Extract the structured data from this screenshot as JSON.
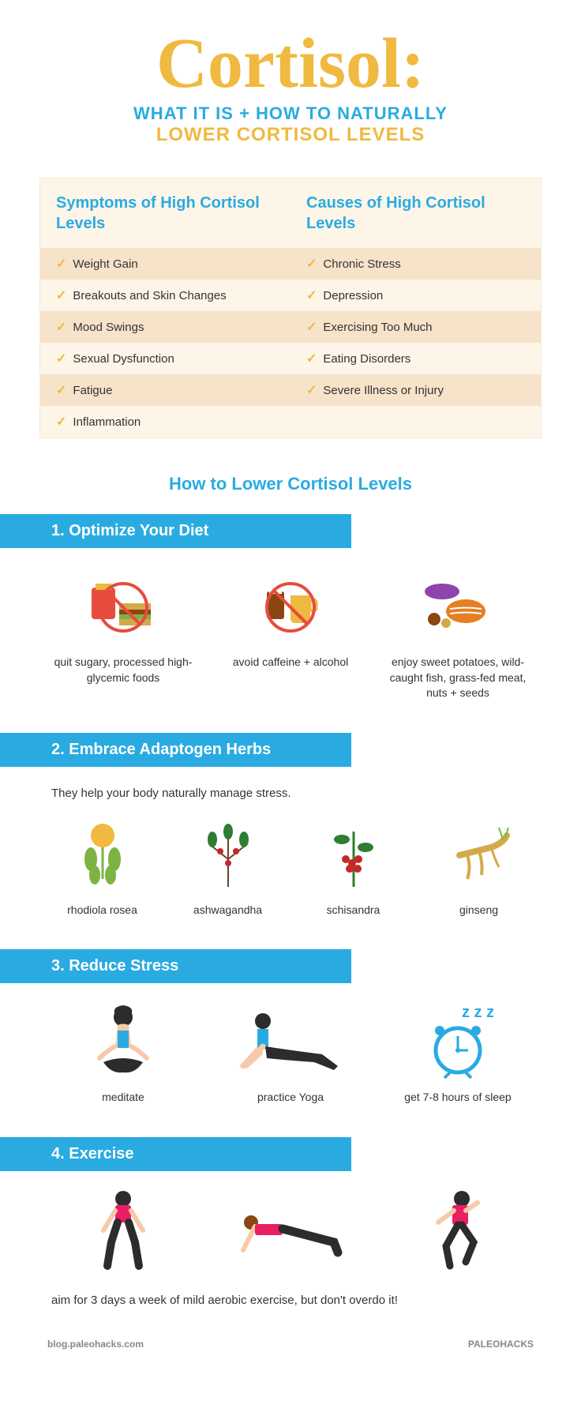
{
  "title": "Cortisol:",
  "subtitle_line1": "WHAT IT IS + HOW TO NATURALLY",
  "subtitle_line2": "LOWER CORTISOL LEVELS",
  "colors": {
    "accent_gold": "#f0b940",
    "accent_blue": "#29abe2",
    "table_bg_light": "#fdf5e8",
    "table_bg_dark": "#f6e3c9",
    "text": "#333333",
    "footer": "#888888"
  },
  "table": {
    "header_left": "Symptoms of High Cortisol Levels",
    "header_right": "Causes of High Cortisol Levels",
    "rows": [
      {
        "left": "Weight Gain",
        "right": "Chronic Stress"
      },
      {
        "left": "Breakouts and Skin Changes",
        "right": "Depression"
      },
      {
        "left": "Mood Swings",
        "right": "Exercising Too Much"
      },
      {
        "left": "Sexual Dysfunction",
        "right": "Eating Disorders"
      },
      {
        "left": "Fatigue",
        "right": "Severe Illness or Injury"
      },
      {
        "left": "Inflammation",
        "right": ""
      }
    ]
  },
  "howto_title": "How to Lower Cortisol Levels",
  "steps": [
    {
      "header": "1. Optimize Your Diet",
      "items": [
        {
          "label": "quit sugary, processed high-glycemic foods",
          "icon": "no-junk-food"
        },
        {
          "label": "avoid caffeine + alcohol",
          "icon": "no-drinks"
        },
        {
          "label": "enjoy sweet potatoes, wild-caught fish, grass-fed meat, nuts + seeds",
          "icon": "healthy-food"
        }
      ]
    },
    {
      "header": "2. Embrace Adaptogen Herbs",
      "desc": "They help your body naturally manage stress.",
      "items": [
        {
          "label": "rhodiola rosea",
          "icon": "herb-yellow"
        },
        {
          "label": "ashwagandha",
          "icon": "herb-green"
        },
        {
          "label": "schisandra",
          "icon": "herb-red"
        },
        {
          "label": "ginseng",
          "icon": "root"
        }
      ]
    },
    {
      "header": "3. Reduce Stress",
      "items": [
        {
          "label": "meditate",
          "icon": "meditate"
        },
        {
          "label": "practice Yoga",
          "icon": "yoga"
        },
        {
          "label": "get 7-8 hours of sleep",
          "icon": "clock"
        }
      ]
    },
    {
      "header": "4. Exercise",
      "items": [
        {
          "label": "",
          "icon": "squat"
        },
        {
          "label": "",
          "icon": "plank"
        },
        {
          "label": "",
          "icon": "run"
        }
      ],
      "note": "aim for 3 days a week of mild aerobic exercise, but don't overdo it!"
    }
  ],
  "footer_left": "blog.paleohacks.com",
  "footer_right": "PALEOHACKS"
}
